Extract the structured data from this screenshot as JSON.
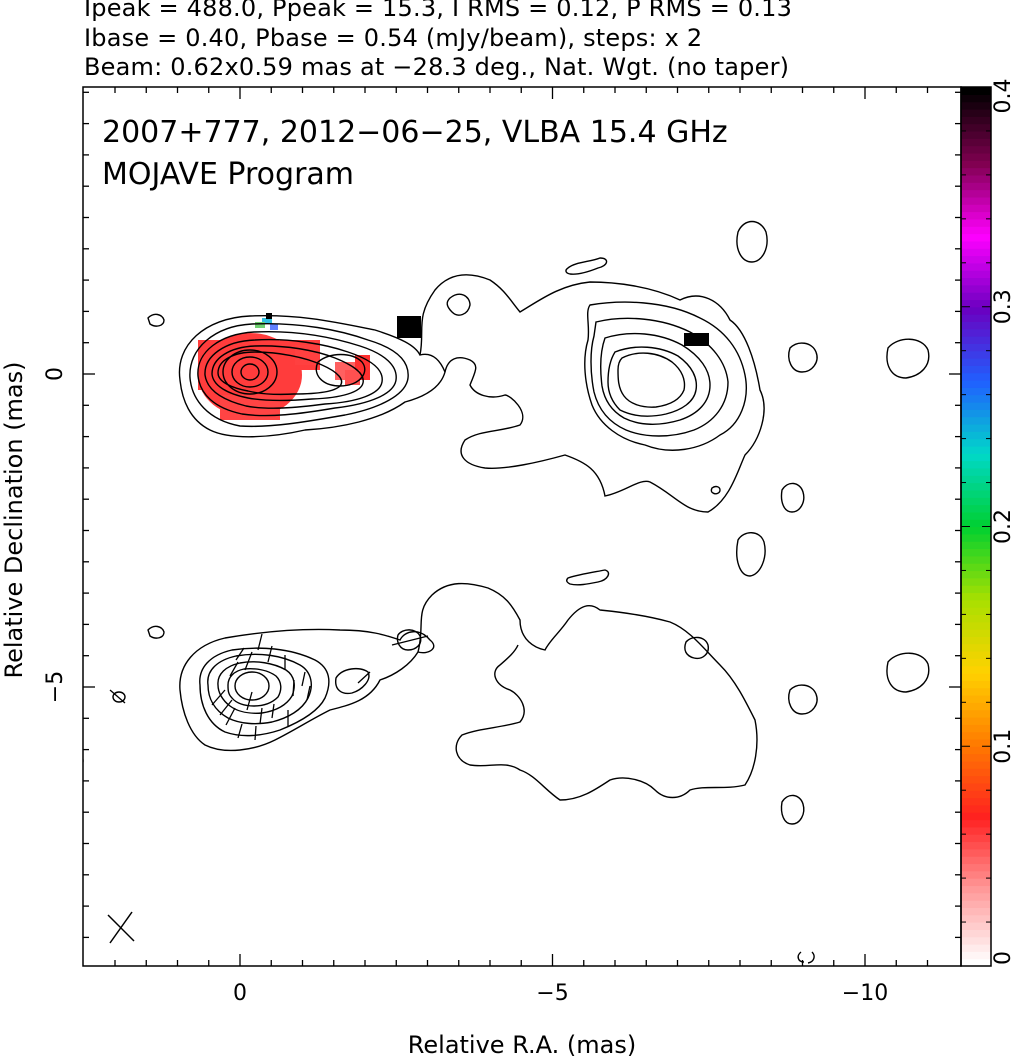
{
  "header": {
    "line1": "Ipeak = 488.0, Ppeak = 15.3, I RMS = 0.12, P RMS = 0.13",
    "line2": "Ibase = 0.40, Pbase = 0.54 (mJy/beam), steps: x 2",
    "line3": "Beam: 0.62x0.59 mas at −28.3 deg., Nat. Wgt. (no taper)"
  },
  "overlay": {
    "line1": "2007+777, 2012−06−25, VLBA 15.4 GHz",
    "line2": "MOJAVE Program"
  },
  "chart_data": {
    "type": "heatmap",
    "title": "2007+777, 2012−06−25, VLBA 15.4 GHz",
    "subtitle": "MOJAVE Program",
    "xlabel": "Relative R.A. (mas)",
    "ylabel": "Relative Declination (mas)",
    "xlim": [
      2.5,
      -11.5
    ],
    "ylim": [
      -9.5,
      4.5
    ],
    "x_ticks": [
      {
        "value": 0,
        "label": "0"
      },
      {
        "value": -5,
        "label": "−5"
      },
      {
        "value": -10,
        "label": "−10"
      }
    ],
    "y_ticks": [
      {
        "value": 0,
        "label": "0"
      },
      {
        "value": -5,
        "label": "−5"
      }
    ],
    "colorbar": {
      "range": [
        0,
        0.4
      ],
      "ticks": [
        {
          "value": 0,
          "label": "0"
        },
        {
          "value": 0.1,
          "label": "0.1"
        },
        {
          "value": 0.2,
          "label": "0.2"
        },
        {
          "value": 0.3,
          "label": "0.3"
        },
        {
          "value": 0.4,
          "label": "0.4"
        }
      ],
      "colors": [
        "#ffffff",
        "#ff9a9a",
        "#ff2020",
        "#ff7a00",
        "#ffd200",
        "#a8e000",
        "#00d030",
        "#00d8c8",
        "#2060ff",
        "#6a00c0",
        "#ff00ff",
        "#800050",
        "#000000"
      ]
    },
    "panels": [
      {
        "name": "polarized_intensity_with_fractional_polarization",
        "y_offset": 0,
        "features": [
          {
            "kind": "component",
            "x": 0.2,
            "y": 0.0,
            "peak": "Ipeak = 488.0"
          },
          {
            "kind": "component",
            "x": -1.6,
            "y": 0.0
          },
          {
            "kind": "extended",
            "x": -6.4,
            "y": -0.2
          }
        ]
      },
      {
        "name": "total_intensity_with_evpa_ticks",
        "y_offset": -5,
        "features": [
          {
            "kind": "component",
            "x": 0.2,
            "y": -5.0
          },
          {
            "kind": "extended",
            "x": -6.4,
            "y": -5.2
          }
        ]
      }
    ],
    "beam": {
      "major_mas": 0.62,
      "minor_mas": 0.59,
      "pa_deg": -28.3
    }
  }
}
